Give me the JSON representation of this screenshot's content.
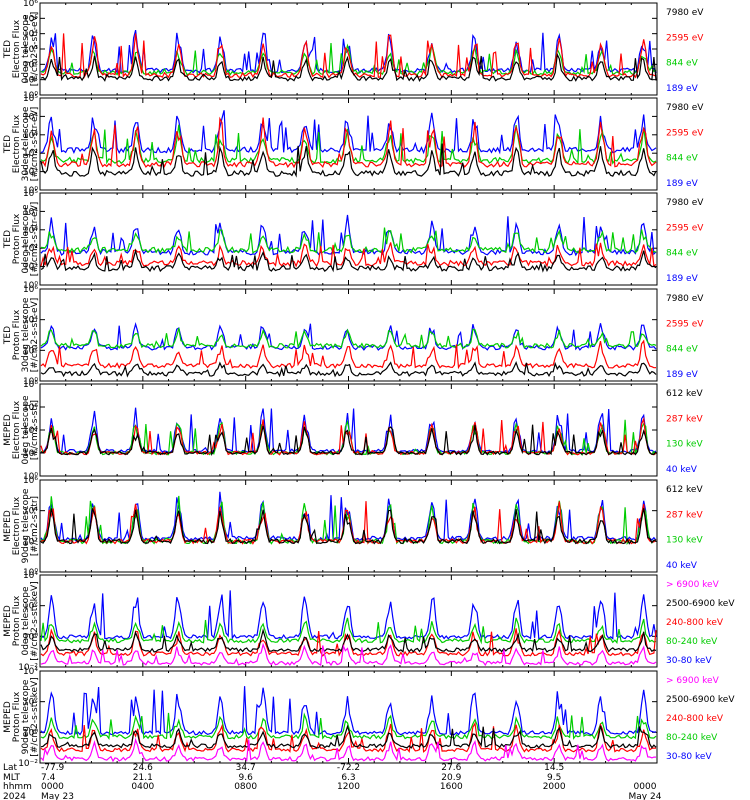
{
  "chart_data": [
    {
      "type": "line",
      "ylabel": [
        "TED",
        "Electron Flux",
        "0deg telescope",
        "[#/cm2-s-str-eV]"
      ],
      "yscale": "log",
      "ylim": [
        1,
        1000000
      ],
      "ytick_labels": [
        "10⁰",
        "10¹",
        "10²",
        "10³",
        "10⁴",
        "10⁵",
        "10⁶"
      ],
      "series": [
        {
          "name": "7980 eV",
          "color": "#000000",
          "base": 12,
          "peak": 400
        },
        {
          "name": "2595 eV",
          "color": "#ff0000",
          "base": 20,
          "peak": 10000
        },
        {
          "name": "844 eV",
          "color": "#00cc00",
          "base": 30,
          "peak": 2000
        },
        {
          "name": "189 eV",
          "color": "#0000ff",
          "base": 40,
          "peak": 20000
        }
      ]
    },
    {
      "type": "line",
      "ylabel": [
        "TED",
        "Electron Flux",
        "30deg telescope",
        "[#/cm2-s-str-eV]"
      ],
      "yscale": "log",
      "ylim": [
        1,
        100000
      ],
      "ytick_labels": [
        "10⁰",
        "10¹",
        "10²",
        "10³",
        "10⁴",
        "10⁵"
      ],
      "series": [
        {
          "name": "7980 eV",
          "color": "#000000",
          "base": 8,
          "peak": 300
        },
        {
          "name": "2595 eV",
          "color": "#ff0000",
          "base": 25,
          "peak": 10000
        },
        {
          "name": "844 eV",
          "color": "#00cc00",
          "base": 40,
          "peak": 3000
        },
        {
          "name": "189 eV",
          "color": "#0000ff",
          "base": 150,
          "peak": 20000
        }
      ]
    },
    {
      "type": "line",
      "ylabel": [
        "TED",
        "Proton Flux",
        "0deg telescope",
        "[#/cm2-s-str-eV]"
      ],
      "yscale": "log",
      "ylim": [
        1,
        100000
      ],
      "ytick_labels": [
        "10⁰",
        "10¹",
        "10²",
        "10³",
        "10⁴",
        "10⁵"
      ],
      "series": [
        {
          "name": "7980 eV",
          "color": "#000000",
          "base": 8,
          "peak": 60
        },
        {
          "name": "2595 eV",
          "color": "#ff0000",
          "base": 15,
          "peak": 200
        },
        {
          "name": "844 eV",
          "color": "#00cc00",
          "base": 80,
          "peak": 1500
        },
        {
          "name": "189 eV",
          "color": "#0000ff",
          "base": 60,
          "peak": 5000
        }
      ]
    },
    {
      "type": "line",
      "ylabel": [
        "TED",
        "Proton Flux",
        "30deg telescope",
        "[#/cm2-s-str-eV]"
      ],
      "yscale": "log",
      "ylim": [
        1,
        1000000
      ],
      "ytick_labels": [
        "10⁰",
        "10²",
        "10⁴",
        "10⁶"
      ],
      "series": [
        {
          "name": "7980 eV",
          "color": "#000000",
          "base": 3,
          "peak": 20
        },
        {
          "name": "2595 eV",
          "color": "#ff0000",
          "base": 10,
          "peak": 400
        },
        {
          "name": "844 eV",
          "color": "#00cc00",
          "base": 200,
          "peak": 3000
        },
        {
          "name": "189 eV",
          "color": "#0000ff",
          "base": 150,
          "peak": 8000
        }
      ]
    },
    {
      "type": "line",
      "ylabel": [
        "MEPED",
        "Electron Flux",
        "0deg telescope",
        "[#/cm2-s-str]"
      ],
      "yscale": "log",
      "ylim": [
        1,
        100000000
      ],
      "ytick_labels": [
        "10⁰",
        "10²",
        "10⁴",
        "10⁶",
        "10⁸"
      ],
      "series": [
        {
          "name": "612 keV",
          "color": "#000000",
          "base": 100,
          "peak": 30000
        },
        {
          "name": "287 keV",
          "color": "#ff0000",
          "base": 100,
          "peak": 100000
        },
        {
          "name": "130 keV",
          "color": "#00cc00",
          "base": 100,
          "peak": 200000
        },
        {
          "name": "40 keV",
          "color": "#0000ff",
          "base": 150,
          "peak": 1000000
        }
      ]
    },
    {
      "type": "line",
      "ylabel": [
        "MEPED",
        "Electron Flux",
        "90deg telescope",
        "[#/cm2-s-str]"
      ],
      "yscale": "log",
      "ylim": [
        1,
        1000000
      ],
      "ytick_labels": [
        "10⁰",
        "10²",
        "10⁴",
        "10⁶"
      ],
      "series": [
        {
          "name": "612 keV",
          "color": "#000000",
          "base": 100,
          "peak": 20000
        },
        {
          "name": "287 keV",
          "color": "#ff0000",
          "base": 100,
          "peak": 50000
        },
        {
          "name": "130 keV",
          "color": "#00cc00",
          "base": 100,
          "peak": 100000
        },
        {
          "name": "40 keV",
          "color": "#0000ff",
          "base": 150,
          "peak": 300000
        }
      ]
    },
    {
      "type": "line",
      "ylabel": [
        "MEPED",
        "Proton Flux",
        "0deg telescope",
        "[#/cm2-s-str-keV]"
      ],
      "yscale": "log",
      "ylim": [
        0.01,
        100000
      ],
      "ytick_labels": [
        "10⁻²",
        "10⁰",
        "10²",
        "10⁴"
      ],
      "series": [
        {
          "name": "> 6900 keV",
          "color": "#ff00ff",
          "base": 0.02,
          "peak": 0.5
        },
        {
          "name": "2500-6900 keV",
          "color": "#000000",
          "base": 0.2,
          "peak": 5
        },
        {
          "name": "240-800 keV",
          "color": "#ff0000",
          "base": 0.1,
          "peak": 10
        },
        {
          "name": "80-240 keV",
          "color": "#00cc00",
          "base": 1,
          "peak": 50
        },
        {
          "name": "30-80 keV",
          "color": "#0000ff",
          "base": 2,
          "peak": 10000
        }
      ]
    },
    {
      "type": "line",
      "ylabel": [
        "MEPED",
        "Proton Flux",
        "90deg telescope",
        "[#/cm2-s-str-keV]"
      ],
      "yscale": "log",
      "ylim": [
        0.01,
        100000
      ],
      "ytick_labels": [
        "10⁻²",
        "10⁰",
        "10²",
        "10⁴"
      ],
      "series": [
        {
          "name": "> 6900 keV",
          "color": "#ff00ff",
          "base": 0.02,
          "peak": 0.5
        },
        {
          "name": "2500-6900 keV",
          "color": "#000000",
          "base": 0.2,
          "peak": 5
        },
        {
          "name": "240-800 keV",
          "color": "#ff0000",
          "base": 0.1,
          "peak": 10
        },
        {
          "name": "80-240 keV",
          "color": "#00cc00",
          "base": 1,
          "peak": 50
        },
        {
          "name": "30-80 keV",
          "color": "#0000ff",
          "base": 2,
          "peak": 10000
        }
      ]
    }
  ],
  "xaxis": {
    "row_labels": [
      "Lat",
      "MLT",
      "hhmm",
      "2024"
    ],
    "ticks": [
      {
        "lat": "-77.9",
        "mlt": "7.4",
        "hhmm": "0000",
        "date": "May 23"
      },
      {
        "lat": "24.6",
        "mlt": "21.1",
        "hhmm": "0400",
        "date": ""
      },
      {
        "lat": "34.7",
        "mlt": "9.6",
        "hhmm": "0800",
        "date": ""
      },
      {
        "lat": "-72.2",
        "mlt": "6.3",
        "hhmm": "1200",
        "date": ""
      },
      {
        "lat": "27.6",
        "mlt": "20.9",
        "hhmm": "1600",
        "date": ""
      },
      {
        "lat": "14.5",
        "mlt": "9.5",
        "hhmm": "2000",
        "date": ""
      },
      {
        "lat": "",
        "mlt": "",
        "hhmm": "0000",
        "date": "May 24"
      }
    ]
  }
}
